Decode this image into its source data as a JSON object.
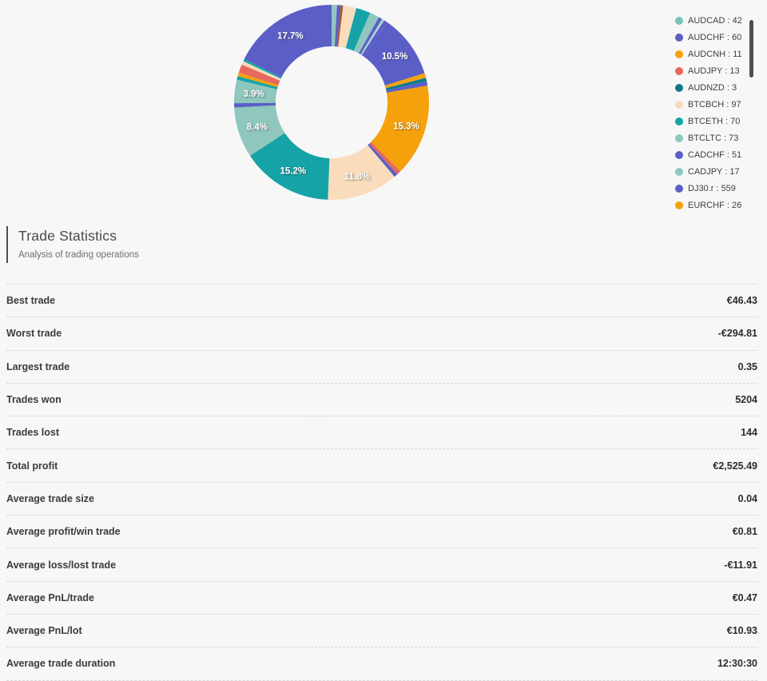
{
  "chart_data": {
    "type": "pie",
    "subtype": "donut",
    "legend_position": "right",
    "legend": [
      {
        "name": "AUDCAD",
        "count": 42,
        "color": "#79c3b9"
      },
      {
        "name": "AUDCHF",
        "count": 60,
        "color": "#5a5ec6"
      },
      {
        "name": "AUDCNH",
        "count": 11,
        "color": "#f5a10c"
      },
      {
        "name": "AUDJPY",
        "count": 13,
        "color": "#e8685c"
      },
      {
        "name": "AUDNZD",
        "count": 3,
        "color": "#0c7a8c"
      },
      {
        "name": "BTCBCH",
        "count": 97,
        "color": "#f8dcbb"
      },
      {
        "name": "BTCETH",
        "count": 70,
        "color": "#12a3a7"
      },
      {
        "name": "BTCLTC",
        "count": 73,
        "color": "#8fc6bd"
      },
      {
        "name": "CADCHF",
        "count": 51,
        "color": "#5a5ec6"
      },
      {
        "name": "CADJPY",
        "count": 17,
        "color": "#8cc8c0"
      },
      {
        "name": "DJ30.r",
        "count": 559,
        "color": "#5a5ec6"
      },
      {
        "name": "EURCHF",
        "count": 26,
        "color": "#f5a10c"
      }
    ],
    "segments": [
      {
        "value": 0.9,
        "color": "#8fc6bd"
      },
      {
        "value": 0.6,
        "color": "#5a5ec6"
      },
      {
        "value": 0.4,
        "color": "#a8552f"
      },
      {
        "value": 2.2,
        "color": "#f8dcbb"
      },
      {
        "value": 2.4,
        "color": "#16a3a7"
      },
      {
        "value": 1.6,
        "color": "#8fc6bd"
      },
      {
        "value": 0.6,
        "color": "#5a5ec6"
      },
      {
        "value": 0.4,
        "color": "#a9d6cf"
      },
      {
        "value": 0.6,
        "color": "#5a5ec6"
      },
      {
        "value": 10.5,
        "color": "#5a5ec6",
        "label": "10.5%"
      },
      {
        "value": 0.8,
        "color": "#f5a10c"
      },
      {
        "value": 0.6,
        "color": "#0c7a8c"
      },
      {
        "value": 0.7,
        "color": "#5a5ec6"
      },
      {
        "value": 15.3,
        "color": "#f5a10c",
        "label": "15.3%"
      },
      {
        "value": 0.7,
        "color": "#e8685c"
      },
      {
        "value": 0.6,
        "color": "#5a5ec6"
      },
      {
        "value": 11.8,
        "color": "#f8dcbb",
        "label": "11.8%"
      },
      {
        "value": 15.2,
        "color": "#16a3a7",
        "label": "15.2%"
      },
      {
        "value": 8.4,
        "color": "#8fc6bd",
        "label": "8.4%"
      },
      {
        "value": 0.7,
        "color": "#5a5ec6"
      },
      {
        "value": 3.9,
        "color": "#8fc6bd",
        "label": "3.9%"
      },
      {
        "value": 0.6,
        "color": "#16a3a7"
      },
      {
        "value": 0.6,
        "color": "#f5a10c"
      },
      {
        "value": 1.4,
        "color": "#e8685c"
      },
      {
        "value": 0.6,
        "color": "#f8dcbb"
      },
      {
        "value": 0.4,
        "color": "#16a3a7"
      },
      {
        "value": 17.7,
        "color": "#5a5ec6",
        "label": "17.7%"
      }
    ]
  },
  "stats": {
    "title": "Trade Statistics",
    "subtitle": "Analysis of trading operations",
    "rows": [
      {
        "label": "Best trade",
        "value": "€46.43"
      },
      {
        "label": "Worst trade",
        "value": "-€294.81"
      },
      {
        "label": "Largest trade",
        "value": "0.35"
      },
      {
        "label": "Trades won",
        "value": "5204"
      },
      {
        "label": "Trades lost",
        "value": "144"
      },
      {
        "label": "Total profit",
        "value": "€2,525.49"
      },
      {
        "label": "Average trade size",
        "value": "0.04"
      },
      {
        "label": "Average profit/win trade",
        "value": "€0.81"
      },
      {
        "label": "Average loss/lost trade",
        "value": "-€11.91"
      },
      {
        "label": "Average PnL/trade",
        "value": "€0.47"
      },
      {
        "label": "Average PnL/lot",
        "value": "€10.93"
      },
      {
        "label": "Average trade duration",
        "value": "12:30:30"
      }
    ]
  }
}
